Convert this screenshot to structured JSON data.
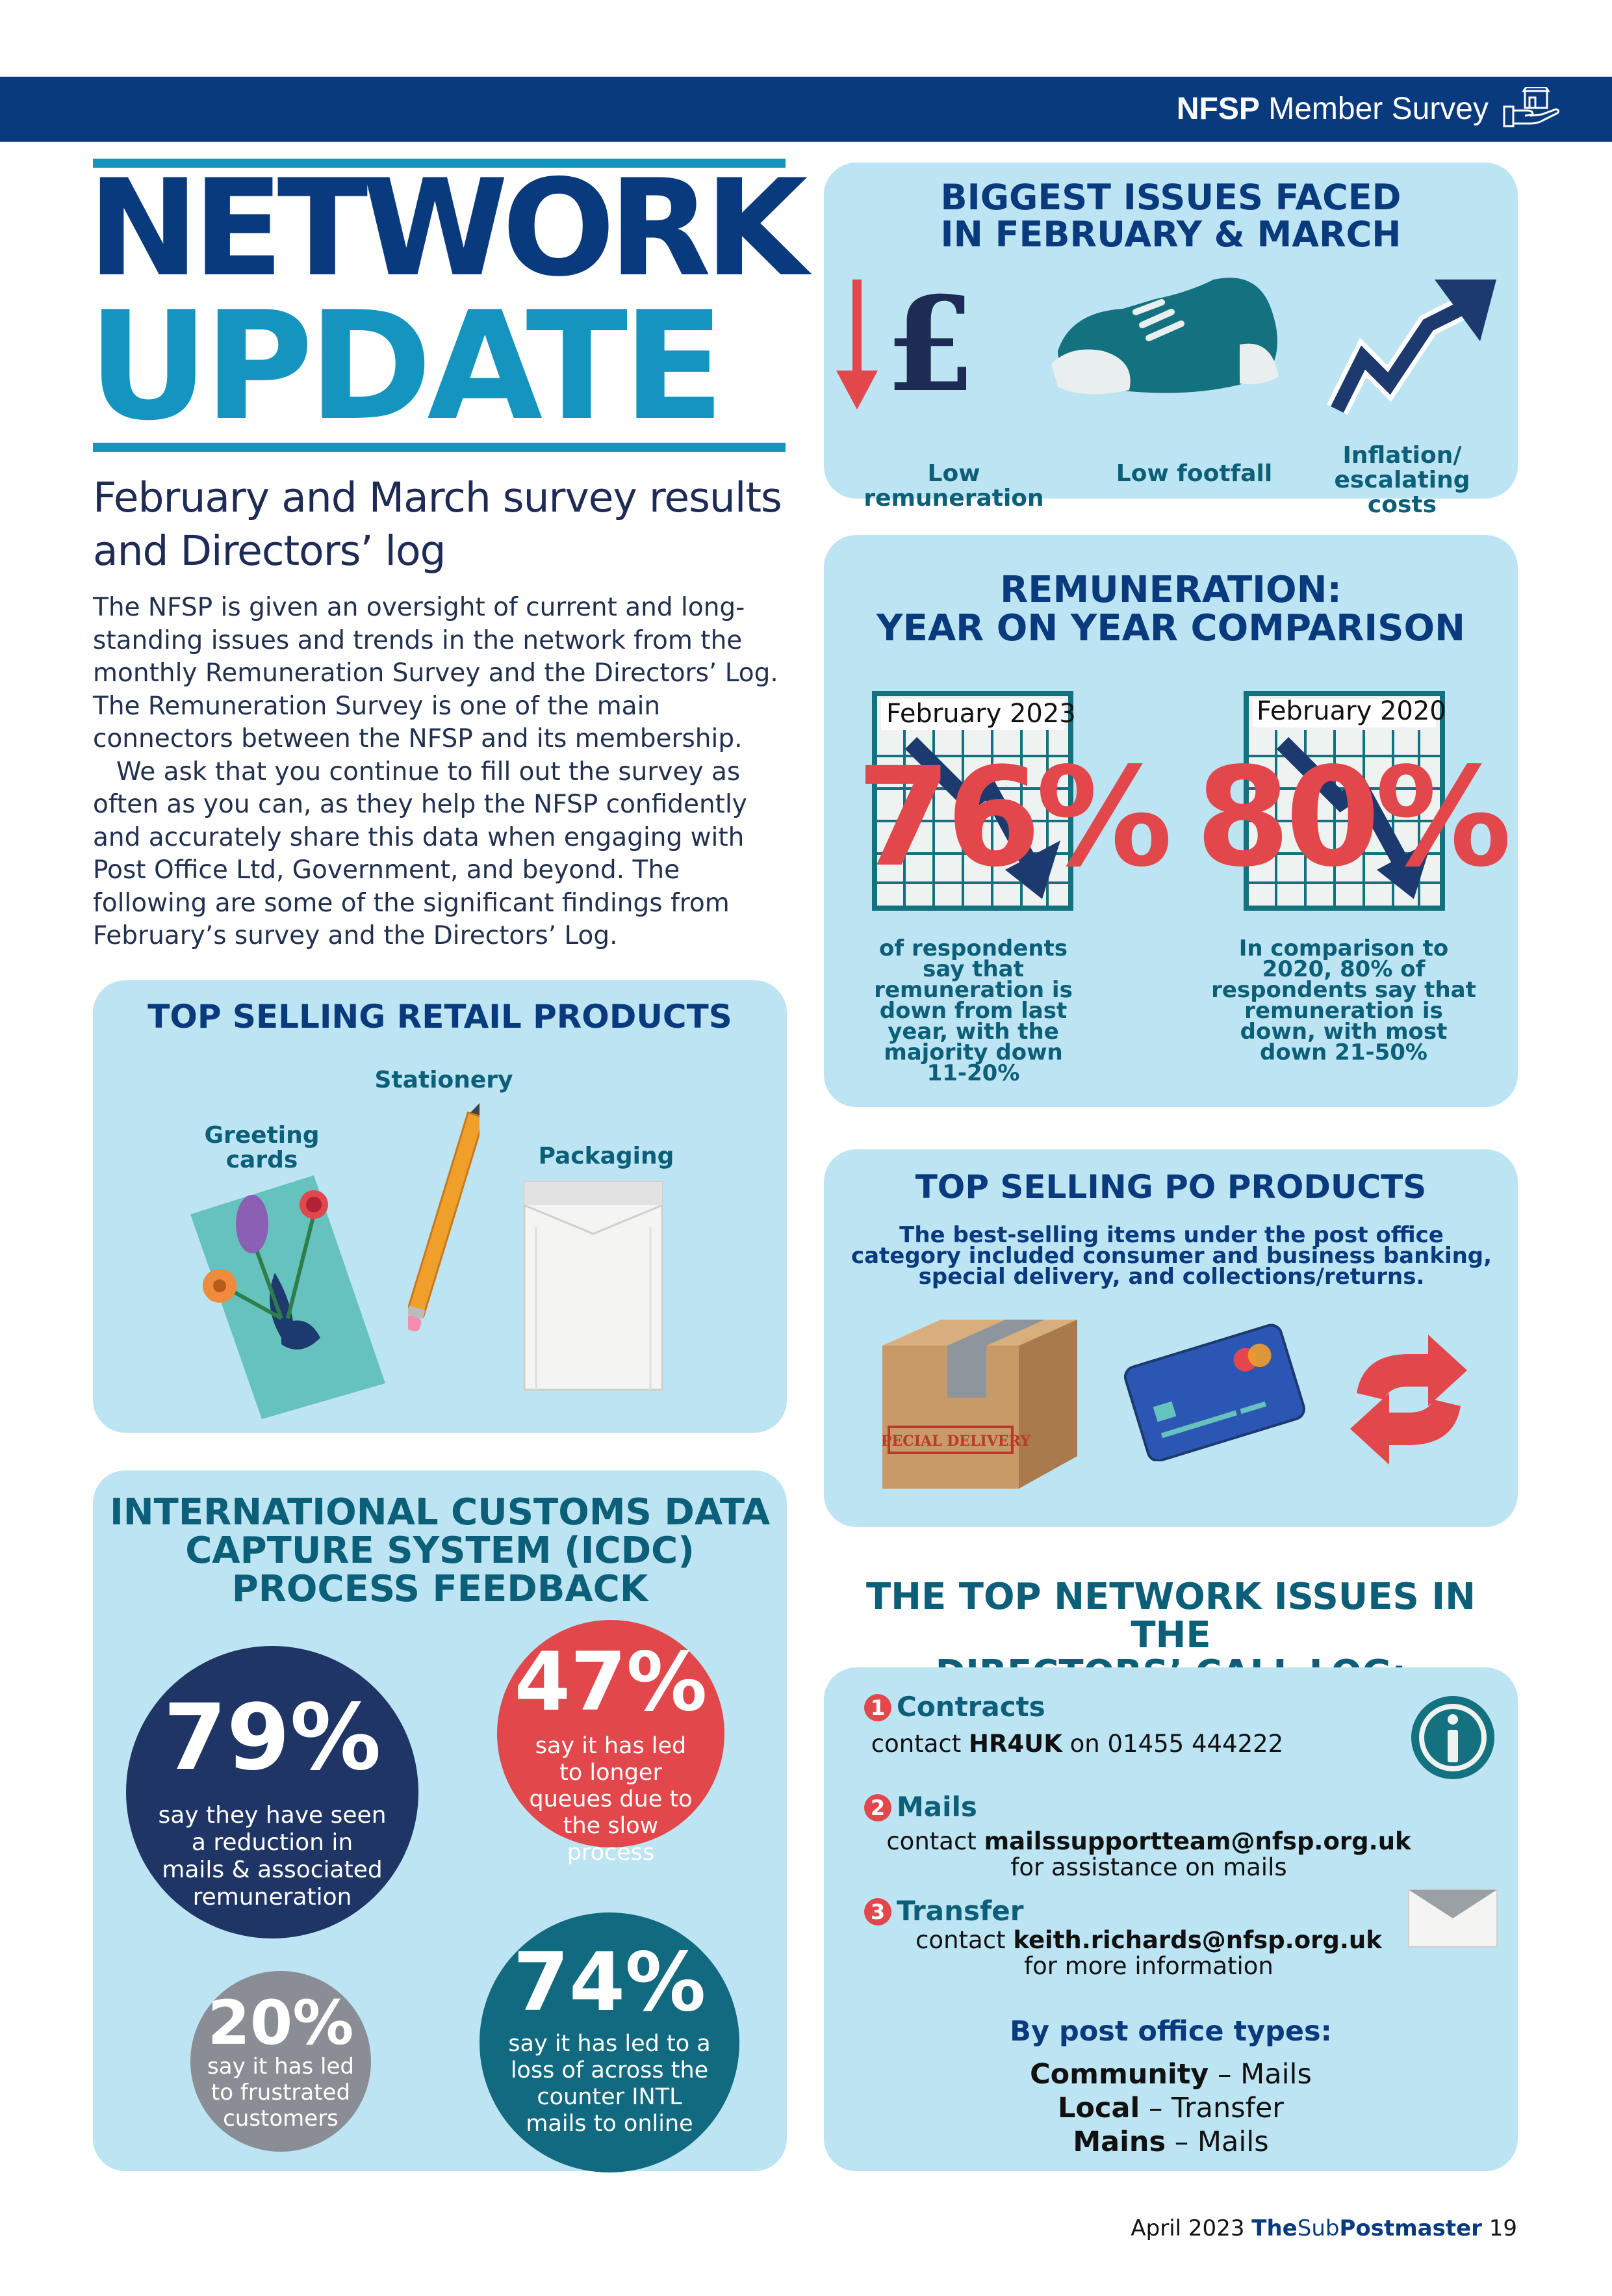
{
  "header": {
    "brand": "NFSP",
    "section": "Member Survey",
    "icon": "post-office-hand-icon"
  },
  "title": {
    "line1": "NETWORK",
    "line2": "UPDATE"
  },
  "subtitle": "February and March survey results and Directors’ log",
  "intro": {
    "p1": "The NFSP is given an oversight of current and long-standing issues and trends in the network from the monthly Remuneration Survey and the Directors’ Log. The Remuneration Survey is one of the main connectors between the NFSP and its membership.",
    "p2": "We ask that you continue to fill out the survey as often as you can, as they help the NFSP confidently and accurately share this data when engaging with Post Office Ltd, Government, and beyond. The following are some of the significant findings from February’s survey and the Directors’ Log."
  },
  "issues_panel": {
    "title_line1": "BIGGEST ISSUES FACED",
    "title_line2": "IN FEBRUARY & MARCH",
    "items": [
      {
        "label": "Low remuneration",
        "icon": "pound-down-arrow-icon"
      },
      {
        "label": "Low footfall",
        "icon": "shoe-icon"
      },
      {
        "label": "Inflation/ escalating costs",
        "icon": "rising-arrow-icon"
      }
    ]
  },
  "remuneration_panel": {
    "title_line1": "REMUNERATION:",
    "title_line2": "YEAR ON YEAR COMPARISON",
    "cards": [
      {
        "period": "February 2023",
        "value": "76%",
        "caption": "of respondents say that remuneration is down from last year, with the majority down 11-20%"
      },
      {
        "period": "February 2020",
        "value": "80%",
        "caption": "In comparison to 2020, 80% of respondents say that remuneration is down, with most down 21-50%"
      }
    ]
  },
  "retail_panel": {
    "title": "TOP SELLING RETAIL PRODUCTS",
    "items": [
      {
        "label": "Greeting cards",
        "icon": "greeting-card-icon"
      },
      {
        "label": "Stationery",
        "icon": "pencil-icon"
      },
      {
        "label": "Packaging",
        "icon": "envelope-packaging-icon"
      }
    ]
  },
  "po_panel": {
    "title": "TOP SELLING PO PRODUCTS",
    "description": "The best-selling items under the post office category included consumer and business banking, special delivery, and collections/returns.",
    "box_stamp": "SPECIAL DELIVERY",
    "icons": [
      "parcel-box-icon",
      "bank-card-icon",
      "returns-arrows-icon"
    ]
  },
  "icdc_panel": {
    "title_line1": "INTERNATIONAL CUSTOMS DATA",
    "title_line2": "CAPTURE SYSTEM (ICDC)",
    "title_line3": "PROCESS FEEDBACK",
    "stats": [
      {
        "value": "79%",
        "text": "say they have seen a reduction in mails & associated remuneration",
        "color": "#1f3566"
      },
      {
        "value": "47%",
        "text": "say it has led to longer queues due to the slow process",
        "color": "#e2474b"
      },
      {
        "value": "20%",
        "text": "say it has led to frustrated customers",
        "color": "#8a8e94"
      },
      {
        "value": "74%",
        "text": "say it has led to a loss of across the counter INTL mails to online",
        "color": "#116a80"
      }
    ]
  },
  "call_log": {
    "heading_line1": "THE TOP NETWORK ISSUES IN THE",
    "heading_line2": "DIRECTORS’ CALL LOG:",
    "issues": [
      {
        "n": "1",
        "title": "Contracts",
        "pre": "contact ",
        "contact": "HR4UK",
        "post": " on 01455 444222",
        "line2": ""
      },
      {
        "n": "2",
        "title": "Mails",
        "pre": "contact ",
        "contact": "mailssupportteam@nfsp.org.uk",
        "post": "",
        "line2": "for assistance on mails"
      },
      {
        "n": "3",
        "title": "Transfer",
        "pre": "contact ",
        "contact": "keith.richards@nfsp.org.uk",
        "post": "",
        "line2": "for more information"
      }
    ],
    "types_heading": "By post office types:",
    "types": [
      {
        "type": "Community",
        "issue": " – Mails"
      },
      {
        "type": "Local",
        "issue": " – Transfer"
      },
      {
        "type": "Mains",
        "issue": " – Mails"
      }
    ]
  },
  "footer": {
    "date": "April 2023",
    "pub_the": "The",
    "pub_sub": "Sub",
    "pub_name": "Postmaster",
    "page": "19"
  }
}
